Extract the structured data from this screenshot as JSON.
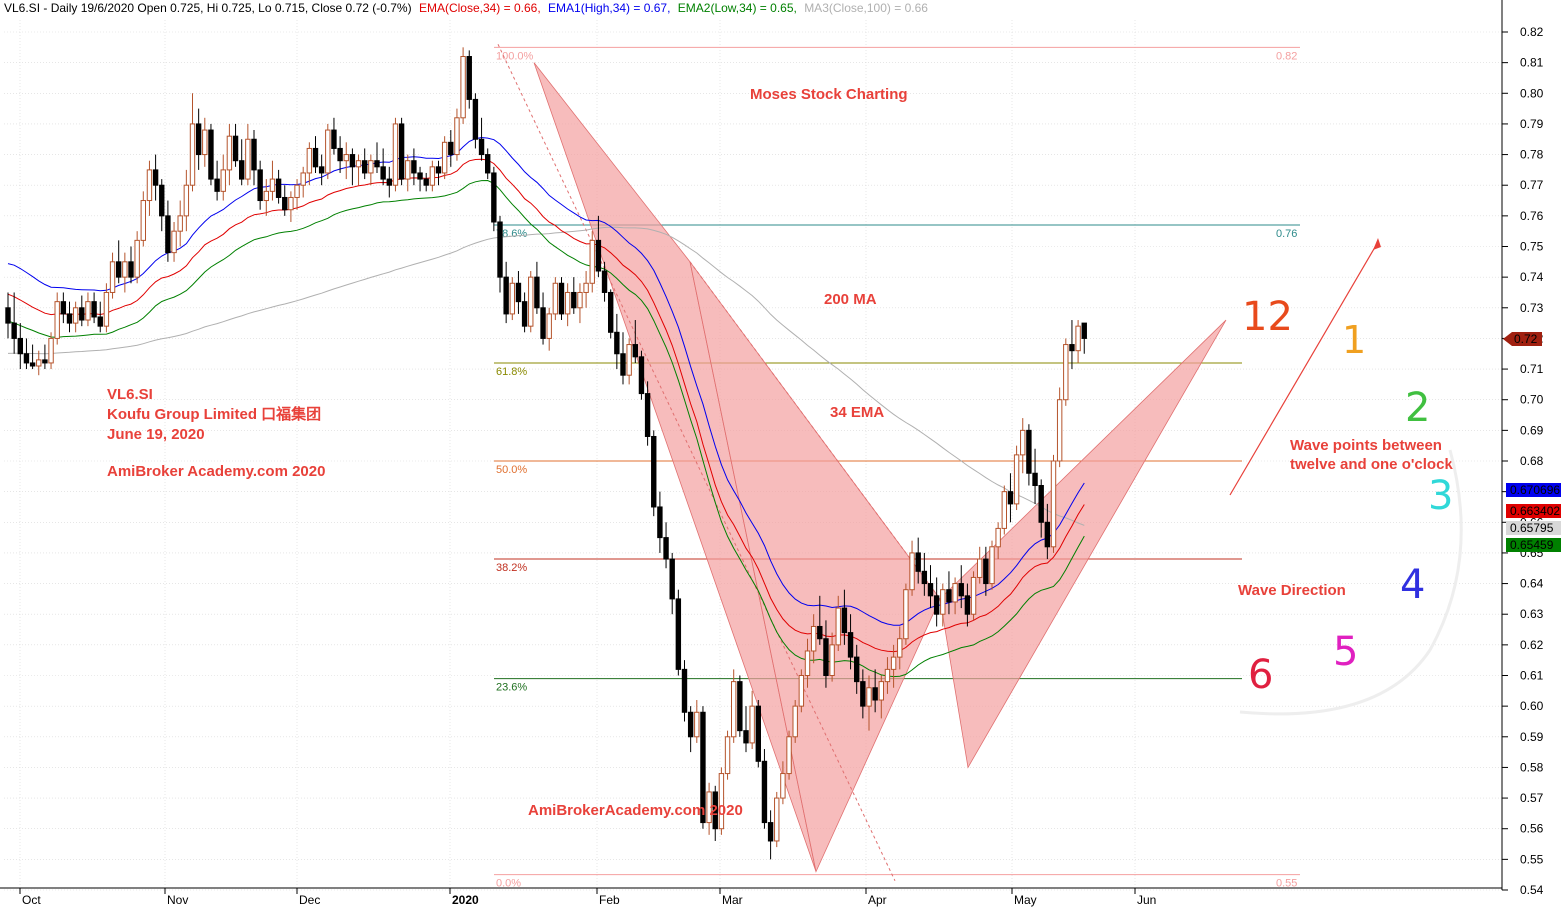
{
  "header": {
    "symbol_info": "VL6.SI - Daily 19/6/2020 Open 0.725, Hi 0.725, Lo 0.715, Close 0.72 (-0.7%)",
    "ema_close": "EMA(Close,34) = 0.66,",
    "ema1_high": "EMA1(High,34) = 0.67,",
    "ema2_low": "EMA2(Low,34) = 0.65,",
    "ma3_close": "MA3(Close,100) = 0.66"
  },
  "colors": {
    "up_candle": "#b5542c",
    "down_candle": "#000000",
    "ema_close": "#e00000",
    "ema_high": "#0000ee",
    "ema_low": "#008000",
    "ma100": "#b0b0b0",
    "pattern_fill": "#f4a0a0",
    "annotation": "#e8413a"
  },
  "annotations": {
    "title": "Moses Stock Charting",
    "ma_label": "200 MA",
    "ema_label": "34 EMA",
    "ticker": "VL6.SI",
    "company": "Koufu Group Limited  口福集团",
    "date": "June 19, 2020",
    "site1": "AmiBroker Academy.com  2020",
    "site2": "AmiBrokerAcademy.com  2020",
    "wave_note_1": "Wave points between",
    "wave_note_2": "twelve and one o'clock",
    "wave_direction": "Wave Direction"
  },
  "clock": [
    {
      "label": "12",
      "color": "#e84a1c"
    },
    {
      "label": "1",
      "color": "#f0a020"
    },
    {
      "label": "2",
      "color": "#40c040"
    },
    {
      "label": "3",
      "color": "#30d8d8"
    },
    {
      "label": "4",
      "color": "#3030e0"
    },
    {
      "label": "5",
      "color": "#e020c0"
    },
    {
      "label": "6",
      "color": "#e02040"
    }
  ],
  "value_tags": [
    {
      "label": "0.72",
      "color": "#a02010"
    },
    {
      "label": "0.670696",
      "color": "#0000ee"
    },
    {
      "label": "0.663402",
      "color": "#e00000"
    },
    {
      "label": "0.65795",
      "color": "#d8d8d8"
    },
    {
      "label": "0.65459",
      "color": "#008000"
    }
  ],
  "chart_data": {
    "type": "candlestick",
    "ylim": [
      0.54,
      0.82
    ],
    "y_ticks": [
      "0.54",
      "0.55",
      "0.56",
      "0.57",
      "0.58",
      "0.59",
      "0.60",
      "0.61",
      "0.62",
      "0.63",
      "0.64",
      "0.65",
      "0.66",
      "0.67",
      "0.68",
      "0.69",
      "0.70",
      "0.71",
      "0.72",
      "0.73",
      "0.74",
      "0.75",
      "0.76",
      "0.77",
      "0.78",
      "0.79",
      "0.80",
      "0.81",
      "0.82"
    ],
    "x_ticks": [
      "Oct",
      "Nov",
      "Dec",
      "2020",
      "Feb",
      "Mar",
      "Apr",
      "May",
      "Jun"
    ],
    "fib_levels": [
      {
        "label": "100.0%",
        "value": 0.815,
        "right": "0.82",
        "color": "#f4a0a0"
      },
      {
        "label": "78.6%",
        "value": 0.757,
        "right": "0.76",
        "color": "#2e8b8b"
      },
      {
        "label": "61.8%",
        "value": 0.712,
        "right": "",
        "color": "#8a8a00"
      },
      {
        "label": "50.0%",
        "value": 0.68,
        "right": "",
        "color": "#e07030"
      },
      {
        "label": "38.2%",
        "value": 0.648,
        "right": "",
        "color": "#c03020"
      },
      {
        "label": "23.6%",
        "value": 0.609,
        "right": "",
        "color": "#207020"
      },
      {
        "label": "0.0%",
        "value": 0.545,
        "right": "0.55",
        "color": "#f4a0a0"
      }
    ],
    "candles": [
      [
        0.73,
        0.735,
        0.72,
        0.725
      ],
      [
        0.725,
        0.735,
        0.715,
        0.72
      ],
      [
        0.72,
        0.725,
        0.71,
        0.715
      ],
      [
        0.715,
        0.72,
        0.71,
        0.712
      ],
      [
        0.712,
        0.718,
        0.71,
        0.711
      ],
      [
        0.711,
        0.716,
        0.708,
        0.713
      ],
      [
        0.713,
        0.718,
        0.71,
        0.712
      ],
      [
        0.712,
        0.722,
        0.71,
        0.72
      ],
      [
        0.72,
        0.735,
        0.718,
        0.732
      ],
      [
        0.732,
        0.735,
        0.725,
        0.728
      ],
      [
        0.728,
        0.732,
        0.722,
        0.725
      ],
      [
        0.725,
        0.732,
        0.722,
        0.73
      ],
      [
        0.73,
        0.734,
        0.724,
        0.726
      ],
      [
        0.726,
        0.735,
        0.724,
        0.732
      ],
      [
        0.732,
        0.735,
        0.725,
        0.727
      ],
      [
        0.727,
        0.732,
        0.722,
        0.724
      ],
      [
        0.724,
        0.738,
        0.722,
        0.735
      ],
      [
        0.735,
        0.748,
        0.733,
        0.745
      ],
      [
        0.745,
        0.752,
        0.738,
        0.74
      ],
      [
        0.74,
        0.748,
        0.735,
        0.745
      ],
      [
        0.745,
        0.75,
        0.738,
        0.74
      ],
      [
        0.74,
        0.755,
        0.738,
        0.752
      ],
      [
        0.752,
        0.768,
        0.75,
        0.765
      ],
      [
        0.765,
        0.778,
        0.76,
        0.775
      ],
      [
        0.775,
        0.78,
        0.765,
        0.77
      ],
      [
        0.77,
        0.772,
        0.755,
        0.76
      ],
      [
        0.76,
        0.765,
        0.745,
        0.748
      ],
      [
        0.748,
        0.758,
        0.745,
        0.755
      ],
      [
        0.755,
        0.765,
        0.75,
        0.76
      ],
      [
        0.76,
        0.775,
        0.755,
        0.77
      ],
      [
        0.77,
        0.8,
        0.768,
        0.79
      ],
      [
        0.79,
        0.795,
        0.775,
        0.78
      ],
      [
        0.78,
        0.792,
        0.776,
        0.788
      ],
      [
        0.788,
        0.79,
        0.77,
        0.772
      ],
      [
        0.772,
        0.778,
        0.765,
        0.768
      ],
      [
        0.768,
        0.78,
        0.765,
        0.775
      ],
      [
        0.775,
        0.79,
        0.77,
        0.786
      ],
      [
        0.786,
        0.79,
        0.776,
        0.778
      ],
      [
        0.778,
        0.785,
        0.77,
        0.772
      ],
      [
        0.772,
        0.79,
        0.77,
        0.785
      ],
      [
        0.785,
        0.788,
        0.77,
        0.775
      ],
      [
        0.775,
        0.778,
        0.762,
        0.765
      ],
      [
        0.765,
        0.772,
        0.76,
        0.768
      ],
      [
        0.768,
        0.778,
        0.765,
        0.772
      ],
      [
        0.772,
        0.775,
        0.764,
        0.766
      ],
      [
        0.766,
        0.77,
        0.76,
        0.762
      ],
      [
        0.762,
        0.768,
        0.758,
        0.766
      ],
      [
        0.766,
        0.772,
        0.762,
        0.77
      ],
      [
        0.77,
        0.776,
        0.766,
        0.774
      ],
      [
        0.774,
        0.784,
        0.77,
        0.782
      ],
      [
        0.782,
        0.786,
        0.774,
        0.776
      ],
      [
        0.776,
        0.78,
        0.77,
        0.774
      ],
      [
        0.774,
        0.79,
        0.772,
        0.788
      ],
      [
        0.788,
        0.792,
        0.78,
        0.782
      ],
      [
        0.782,
        0.786,
        0.774,
        0.778
      ],
      [
        0.778,
        0.784,
        0.772,
        0.78
      ],
      [
        0.78,
        0.782,
        0.77,
        0.776
      ],
      [
        0.776,
        0.78,
        0.77,
        0.778
      ],
      [
        0.778,
        0.782,
        0.772,
        0.774
      ],
      [
        0.774,
        0.78,
        0.77,
        0.778
      ],
      [
        0.778,
        0.784,
        0.774,
        0.776
      ],
      [
        0.776,
        0.782,
        0.77,
        0.772
      ],
      [
        0.772,
        0.776,
        0.766,
        0.77
      ],
      [
        0.77,
        0.792,
        0.768,
        0.79
      ],
      [
        0.79,
        0.792,
        0.77,
        0.772
      ],
      [
        0.772,
        0.78,
        0.768,
        0.778
      ],
      [
        0.778,
        0.782,
        0.77,
        0.774
      ],
      [
        0.774,
        0.776,
        0.768,
        0.772
      ],
      [
        0.772,
        0.774,
        0.768,
        0.77
      ],
      [
        0.77,
        0.778,
        0.768,
        0.776
      ],
      [
        0.776,
        0.778,
        0.77,
        0.774
      ],
      [
        0.774,
        0.786,
        0.772,
        0.784
      ],
      [
        0.784,
        0.788,
        0.776,
        0.78
      ],
      [
        0.78,
        0.795,
        0.778,
        0.792
      ],
      [
        0.792,
        0.815,
        0.79,
        0.812
      ],
      [
        0.812,
        0.814,
        0.795,
        0.798
      ],
      [
        0.798,
        0.8,
        0.782,
        0.785
      ],
      [
        0.785,
        0.792,
        0.778,
        0.78
      ],
      [
        0.78,
        0.782,
        0.772,
        0.774
      ],
      [
        0.774,
        0.776,
        0.755,
        0.758
      ],
      [
        0.758,
        0.76,
        0.735,
        0.74
      ],
      [
        0.74,
        0.745,
        0.725,
        0.728
      ],
      [
        0.728,
        0.74,
        0.726,
        0.738
      ],
      [
        0.738,
        0.742,
        0.728,
        0.732
      ],
      [
        0.732,
        0.735,
        0.722,
        0.724
      ],
      [
        0.724,
        0.742,
        0.722,
        0.74
      ],
      [
        0.74,
        0.745,
        0.728,
        0.73
      ],
      [
        0.73,
        0.735,
        0.718,
        0.72
      ],
      [
        0.72,
        0.73,
        0.716,
        0.728
      ],
      [
        0.728,
        0.74,
        0.726,
        0.738
      ],
      [
        0.738,
        0.74,
        0.726,
        0.728
      ],
      [
        0.728,
        0.738,
        0.724,
        0.735
      ],
      [
        0.735,
        0.74,
        0.728,
        0.73
      ],
      [
        0.73,
        0.738,
        0.725,
        0.735
      ],
      [
        0.735,
        0.742,
        0.73,
        0.738
      ],
      [
        0.738,
        0.755,
        0.735,
        0.752
      ],
      [
        0.752,
        0.76,
        0.74,
        0.742
      ],
      [
        0.742,
        0.745,
        0.732,
        0.735
      ],
      [
        0.735,
        0.736,
        0.72,
        0.722
      ],
      [
        0.722,
        0.728,
        0.71,
        0.715
      ],
      [
        0.715,
        0.722,
        0.705,
        0.708
      ],
      [
        0.708,
        0.72,
        0.705,
        0.718
      ],
      [
        0.718,
        0.726,
        0.712,
        0.714
      ],
      [
        0.714,
        0.716,
        0.7,
        0.702
      ],
      [
        0.702,
        0.706,
        0.685,
        0.688
      ],
      [
        0.688,
        0.69,
        0.662,
        0.665
      ],
      [
        0.665,
        0.67,
        0.65,
        0.655
      ],
      [
        0.655,
        0.66,
        0.645,
        0.648
      ],
      [
        0.648,
        0.65,
        0.63,
        0.635
      ],
      [
        0.635,
        0.638,
        0.61,
        0.612
      ],
      [
        0.612,
        0.615,
        0.595,
        0.598
      ],
      [
        0.598,
        0.6,
        0.585,
        0.59
      ],
      [
        0.59,
        0.602,
        0.588,
        0.598
      ],
      [
        0.598,
        0.6,
        0.56,
        0.562
      ],
      [
        0.562,
        0.575,
        0.558,
        0.572
      ],
      [
        0.572,
        0.574,
        0.556,
        0.56
      ],
      [
        0.56,
        0.58,
        0.558,
        0.578
      ],
      [
        0.578,
        0.592,
        0.576,
        0.59
      ],
      [
        0.59,
        0.612,
        0.588,
        0.608
      ],
      [
        0.608,
        0.61,
        0.59,
        0.592
      ],
      [
        0.592,
        0.6,
        0.585,
        0.588
      ],
      [
        0.588,
        0.605,
        0.586,
        0.6
      ],
      [
        0.6,
        0.602,
        0.58,
        0.582
      ],
      [
        0.582,
        0.586,
        0.56,
        0.562
      ],
      [
        0.562,
        0.566,
        0.55,
        0.556
      ],
      [
        0.556,
        0.572,
        0.554,
        0.57
      ],
      [
        0.57,
        0.582,
        0.568,
        0.578
      ],
      [
        0.578,
        0.592,
        0.576,
        0.59
      ],
      [
        0.59,
        0.602,
        0.588,
        0.6
      ],
      [
        0.6,
        0.612,
        0.598,
        0.61
      ],
      [
        0.61,
        0.622,
        0.606,
        0.618
      ],
      [
        0.618,
        0.63,
        0.614,
        0.626
      ],
      [
        0.626,
        0.636,
        0.62,
        0.622
      ],
      [
        0.622,
        0.628,
        0.606,
        0.61
      ],
      [
        0.61,
        0.624,
        0.608,
        0.62
      ],
      [
        0.62,
        0.636,
        0.618,
        0.632
      ],
      [
        0.632,
        0.638,
        0.62,
        0.624
      ],
      [
        0.624,
        0.63,
        0.612,
        0.616
      ],
      [
        0.616,
        0.62,
        0.604,
        0.608
      ],
      [
        0.608,
        0.612,
        0.596,
        0.6
      ],
      [
        0.6,
        0.61,
        0.592,
        0.606
      ],
      [
        0.606,
        0.612,
        0.598,
        0.602
      ],
      [
        0.602,
        0.61,
        0.596,
        0.608
      ],
      [
        0.608,
        0.616,
        0.604,
        0.612
      ],
      [
        0.612,
        0.62,
        0.606,
        0.616
      ],
      [
        0.616,
        0.626,
        0.612,
        0.622
      ],
      [
        0.622,
        0.64,
        0.62,
        0.638
      ],
      [
        0.638,
        0.654,
        0.636,
        0.65
      ],
      [
        0.65,
        0.655,
        0.64,
        0.644
      ],
      [
        0.644,
        0.65,
        0.636,
        0.64
      ],
      [
        0.64,
        0.646,
        0.632,
        0.636
      ],
      [
        0.636,
        0.642,
        0.626,
        0.63
      ],
      [
        0.63,
        0.64,
        0.626,
        0.638
      ],
      [
        0.638,
        0.644,
        0.63,
        0.634
      ],
      [
        0.634,
        0.642,
        0.63,
        0.64
      ],
      [
        0.64,
        0.646,
        0.632,
        0.636
      ],
      [
        0.636,
        0.64,
        0.626,
        0.63
      ],
      [
        0.63,
        0.644,
        0.628,
        0.642
      ],
      [
        0.642,
        0.652,
        0.64,
        0.648
      ],
      [
        0.648,
        0.652,
        0.636,
        0.64
      ],
      [
        0.64,
        0.654,
        0.638,
        0.652
      ],
      [
        0.652,
        0.66,
        0.648,
        0.658
      ],
      [
        0.658,
        0.672,
        0.656,
        0.67
      ],
      [
        0.67,
        0.676,
        0.66,
        0.666
      ],
      [
        0.666,
        0.685,
        0.664,
        0.682
      ],
      [
        0.682,
        0.694,
        0.676,
        0.69
      ],
      [
        0.69,
        0.692,
        0.672,
        0.676
      ],
      [
        0.676,
        0.684,
        0.666,
        0.672
      ],
      [
        0.672,
        0.674,
        0.655,
        0.66
      ],
      [
        0.66,
        0.666,
        0.648,
        0.652
      ],
      [
        0.652,
        0.682,
        0.65,
        0.68
      ],
      [
        0.68,
        0.704,
        0.678,
        0.7
      ],
      [
        0.7,
        0.72,
        0.698,
        0.718
      ],
      [
        0.718,
        0.726,
        0.71,
        0.716
      ],
      [
        0.716,
        0.726,
        0.712,
        0.724
      ],
      [
        0.725,
        0.725,
        0.715,
        0.72
      ]
    ]
  }
}
